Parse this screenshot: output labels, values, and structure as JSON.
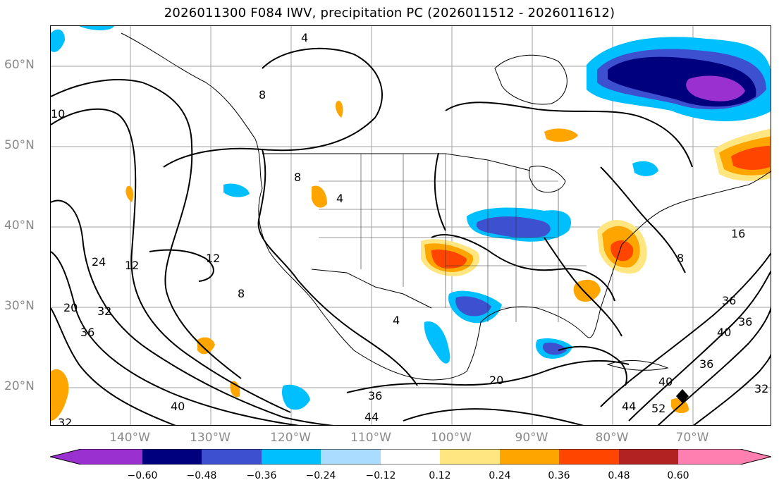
{
  "title": "2026011300 F084 IWV, precipitation PC (2026011512 - 2026011612)",
  "lat_labels": [
    "60°N",
    "50°N",
    "40°N",
    "30°N",
    "20°N"
  ],
  "lon_labels": [
    "140°W",
    "130°W",
    "120°W",
    "110°W",
    "100°W",
    "90°W",
    "80°W",
    "70°W"
  ],
  "contour_labels": [
    "12",
    "12",
    "24",
    "20",
    "32",
    "36",
    "40",
    "32",
    "36",
    "44",
    "20",
    "4",
    "8",
    "8",
    "16",
    "8",
    "36",
    "40",
    "36",
    "40",
    "36",
    "32",
    "52",
    "44",
    "4",
    "8",
    "4",
    "10"
  ],
  "colorbar": {
    "ticks": [
      "−0.60",
      "−0.48",
      "−0.36",
      "−0.24",
      "−0.12",
      "0.12",
      "0.24",
      "0.36",
      "0.48",
      "0.60"
    ],
    "colors": [
      "#9b30d0",
      "#00007f",
      "#3c50d0",
      "#00bfff",
      "#aadcff",
      "#ffffff",
      "#ffe680",
      "#ffa500",
      "#ff4500",
      "#b22222",
      "#ff80b0"
    ]
  }
}
